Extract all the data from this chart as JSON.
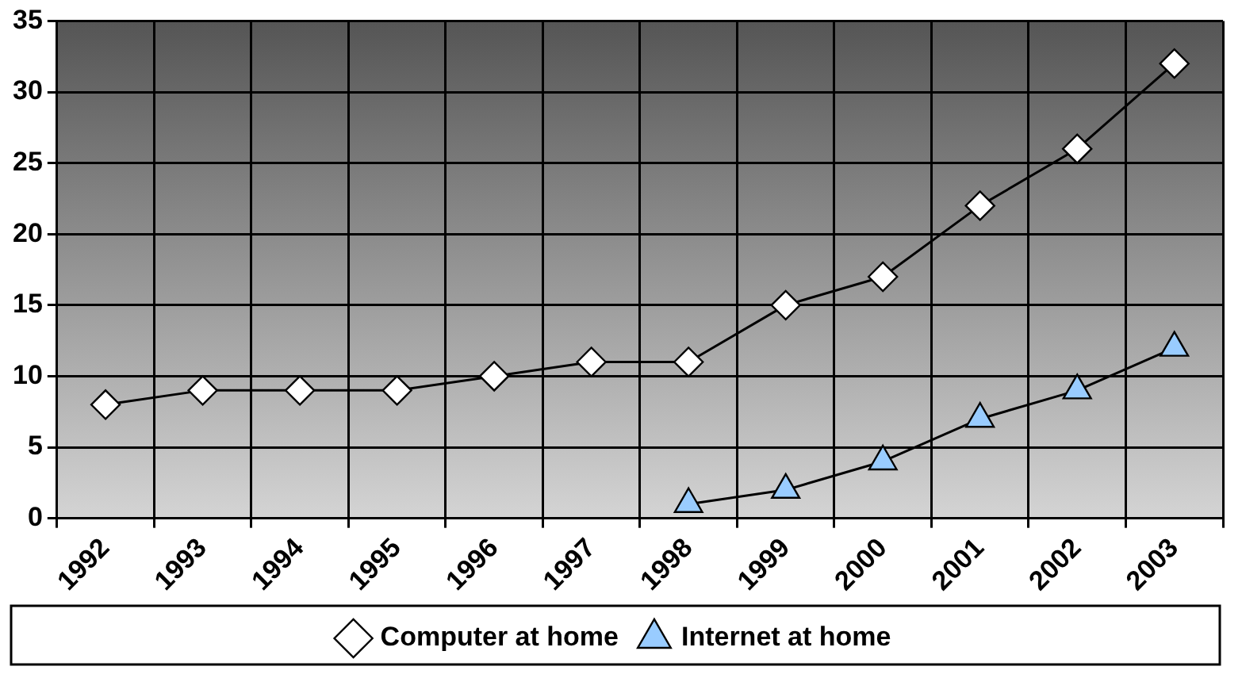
{
  "chart_data": {
    "type": "line",
    "categories": [
      "1992",
      "1993",
      "1994",
      "1995",
      "1996",
      "1997",
      "1998",
      "1999",
      "2000",
      "2001",
      "2002",
      "2003"
    ],
    "series": [
      {
        "name": "Computer at home",
        "color": "#ffffff",
        "marker": "diamond",
        "values": [
          8,
          9,
          9,
          9,
          10,
          11,
          11,
          15,
          17,
          22,
          26,
          32
        ]
      },
      {
        "name": "Internet at home",
        "color": "#99ccff",
        "marker": "triangle",
        "values": [
          null,
          null,
          null,
          null,
          null,
          null,
          1,
          2,
          4,
          7,
          9,
          12
        ]
      }
    ],
    "ylim": [
      0,
      35
    ],
    "yticks": [
      0,
      5,
      10,
      15,
      20,
      25,
      30,
      35
    ],
    "grid": true,
    "legend": "bottom",
    "line_style": "solid"
  }
}
